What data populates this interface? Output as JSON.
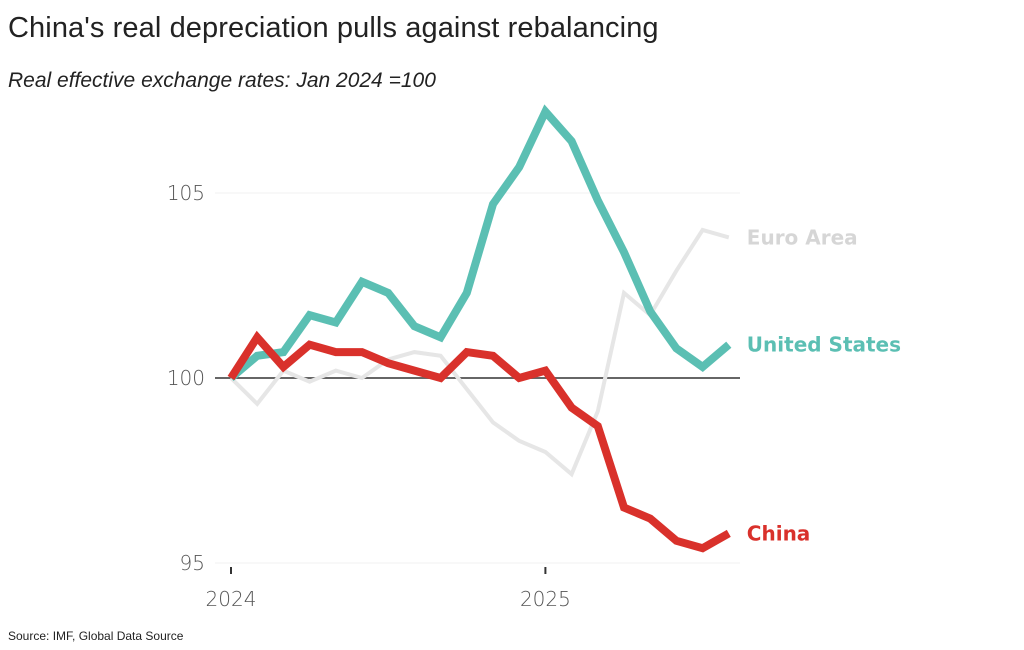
{
  "header": {
    "title": "China's real depreciation pulls against rebalancing",
    "subtitle": "Real effective exchange rates: Jan 2024 =100"
  },
  "footer": {
    "source": "Source: IMF, Global Data Source"
  },
  "chart_data": {
    "type": "line",
    "title": "China's real depreciation pulls against rebalancing",
    "subtitle": "Real effective exchange rates: Jan 2024 =100",
    "xlabel": "",
    "ylabel": "",
    "x": [
      "2024-01",
      "2024-02",
      "2024-03",
      "2024-04",
      "2024-05",
      "2024-06",
      "2024-07",
      "2024-08",
      "2024-09",
      "2024-10",
      "2024-11",
      "2024-12",
      "2025-01",
      "2025-02",
      "2025-03",
      "2025-04",
      "2025-05",
      "2025-06",
      "2025-07",
      "2025-08"
    ],
    "x_ticks": [
      {
        "label": "2024",
        "index": 0
      },
      {
        "label": "2025",
        "index": 12
      }
    ],
    "y_ticks": [
      95,
      100,
      105
    ],
    "ylim": [
      95,
      107.5
    ],
    "grid": true,
    "reference_line": 100,
    "legend": "direct labels at right end of lines",
    "series": [
      {
        "name": "Euro Area",
        "color": "#e6e6e6",
        "label_color": "#d6d6d6",
        "values": [
          100,
          99.3,
          100.2,
          99.9,
          100.2,
          100.0,
          100.5,
          100.7,
          100.6,
          99.7,
          98.8,
          98.3,
          98.0,
          97.4,
          99.1,
          102.3,
          101.7,
          102.9,
          104.0,
          103.8
        ]
      },
      {
        "name": "United States",
        "color": "#5bbfb3",
        "label_color": "#5bbfb3",
        "values": [
          100,
          100.6,
          100.7,
          101.7,
          101.5,
          102.6,
          102.3,
          101.4,
          101.1,
          102.3,
          104.7,
          105.7,
          107.2,
          106.4,
          104.8,
          103.4,
          101.8,
          100.8,
          100.3,
          100.9
        ]
      },
      {
        "name": "China",
        "color": "#d9312b",
        "label_color": "#d9312b",
        "values": [
          100,
          101.1,
          100.3,
          100.9,
          100.7,
          100.7,
          100.4,
          100.2,
          100.0,
          100.7,
          100.6,
          100.0,
          100.2,
          99.2,
          98.7,
          96.5,
          96.2,
          95.6,
          95.4,
          95.8
        ]
      }
    ]
  }
}
